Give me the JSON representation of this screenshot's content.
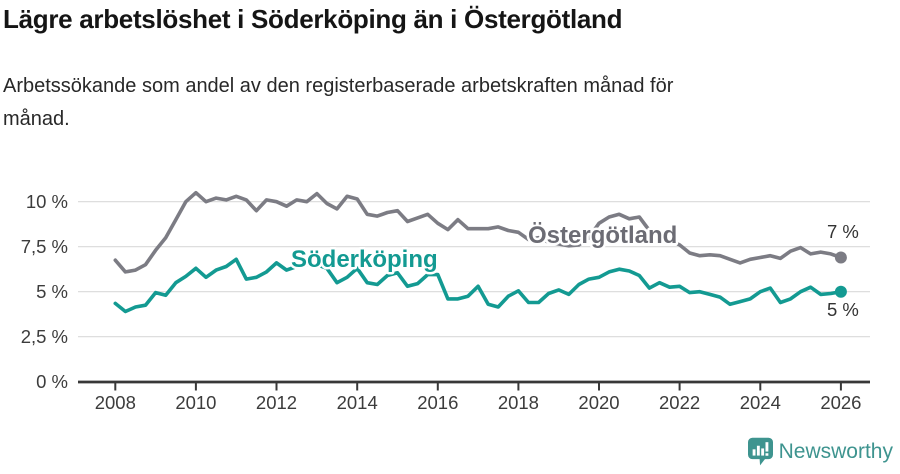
{
  "header": {
    "title": "Lägre arbetslöshet i Söderköping än i Östergötland",
    "subtitle_lines": [
      "Arbetssökande som andel av den registerbaserade arbetskraften månad för",
      "månad."
    ]
  },
  "footer": {
    "brand": "Newsworthy",
    "brand_color": "#3e948f"
  },
  "chart_data": {
    "type": "line",
    "title": "Lägre arbetslöshet i Söderköping än i Östergötland",
    "subtitle": "Arbetssökande som andel av den registerbaserade arbetskraften månad för månad.",
    "grid": "horizontal",
    "legend": "inline-labels",
    "x_axis": {
      "tick_values": [
        2008,
        2010,
        2012,
        2014,
        2016,
        2018,
        2020,
        2022,
        2024,
        2026
      ],
      "tick_labels": [
        "2008",
        "2010",
        "2012",
        "2014",
        "2016",
        "2018",
        "2020",
        "2022",
        "2024",
        "2026"
      ],
      "range": [
        2007.1,
        2026.7
      ]
    },
    "y_axis": {
      "unit": "%",
      "tick_values": [
        0,
        2.5,
        5,
        7.5,
        10
      ],
      "tick_labels": [
        "0 %",
        "2,5 %",
        "5 %",
        "7,5 %",
        "10 %"
      ],
      "range": [
        0,
        11.5
      ]
    },
    "x": [
      2008,
      2008.25,
      2008.5,
      2008.75,
      2009,
      2009.25,
      2009.5,
      2009.75,
      2010,
      2010.25,
      2010.5,
      2010.75,
      2011,
      2011.25,
      2011.5,
      2011.75,
      2012,
      2012.25,
      2012.5,
      2012.75,
      2013,
      2013.25,
      2013.5,
      2013.75,
      2014,
      2014.25,
      2014.5,
      2014.75,
      2015,
      2015.25,
      2015.5,
      2015.75,
      2016,
      2016.25,
      2016.5,
      2016.75,
      2017,
      2017.25,
      2017.5,
      2017.75,
      2018,
      2018.25,
      2018.5,
      2018.75,
      2019,
      2019.25,
      2019.5,
      2019.75,
      2020,
      2020.25,
      2020.5,
      2020.75,
      2021,
      2021.25,
      2021.5,
      2021.75,
      2022,
      2022.25,
      2022.5,
      2022.75,
      2023,
      2023.25,
      2023.5,
      2023.75,
      2024,
      2024.25,
      2024.5,
      2024.75,
      2025,
      2025.25,
      2025.5,
      2025.75,
      2026
    ],
    "series": [
      {
        "name": "Östergötland",
        "color": "#7c7c84",
        "label_color": "#6c6c74",
        "end_label": "7 %",
        "values": [
          6.75,
          6.1,
          6.2,
          6.5,
          7.3,
          8.0,
          9.0,
          10.0,
          10.5,
          10.0,
          10.2,
          10.1,
          10.3,
          10.1,
          9.5,
          10.1,
          10.0,
          9.75,
          10.1,
          10.0,
          10.45,
          9.9,
          9.6,
          10.3,
          10.15,
          9.3,
          9.2,
          9.4,
          9.5,
          8.9,
          9.1,
          9.3,
          8.8,
          8.45,
          9.0,
          8.5,
          8.5,
          8.5,
          8.6,
          8.4,
          8.3,
          7.9,
          8.0,
          7.75,
          7.65,
          7.55,
          7.6,
          8.0,
          8.8,
          9.15,
          9.3,
          9.05,
          9.15,
          8.4,
          7.8,
          7.85,
          7.6,
          7.15,
          7.0,
          7.05,
          7.0,
          6.8,
          6.6,
          6.8,
          6.9,
          7.0,
          6.85,
          7.25,
          7.45,
          7.1,
          7.2,
          7.1,
          6.9
        ]
      },
      {
        "name": "Söderköping",
        "color": "#139a92",
        "label_color": "#139a92",
        "end_label": "5 %",
        "values": [
          4.35,
          3.9,
          4.15,
          4.25,
          4.95,
          4.8,
          5.5,
          5.85,
          6.3,
          5.8,
          6.2,
          6.4,
          6.8,
          5.7,
          5.8,
          6.1,
          6.6,
          6.2,
          6.4,
          6.5,
          6.5,
          6.3,
          5.5,
          5.8,
          6.3,
          5.5,
          5.4,
          5.9,
          6.05,
          5.3,
          5.45,
          5.95,
          5.95,
          4.6,
          4.6,
          4.75,
          5.3,
          4.3,
          4.15,
          4.75,
          5.05,
          4.4,
          4.4,
          4.9,
          5.1,
          4.85,
          5.4,
          5.7,
          5.8,
          6.1,
          6.25,
          6.15,
          5.9,
          5.2,
          5.5,
          5.25,
          5.3,
          4.95,
          5.0,
          4.85,
          4.7,
          4.3,
          4.45,
          4.6,
          5.0,
          5.2,
          4.4,
          4.6,
          5.0,
          5.25,
          4.85,
          4.9,
          5.0
        ]
      }
    ]
  }
}
